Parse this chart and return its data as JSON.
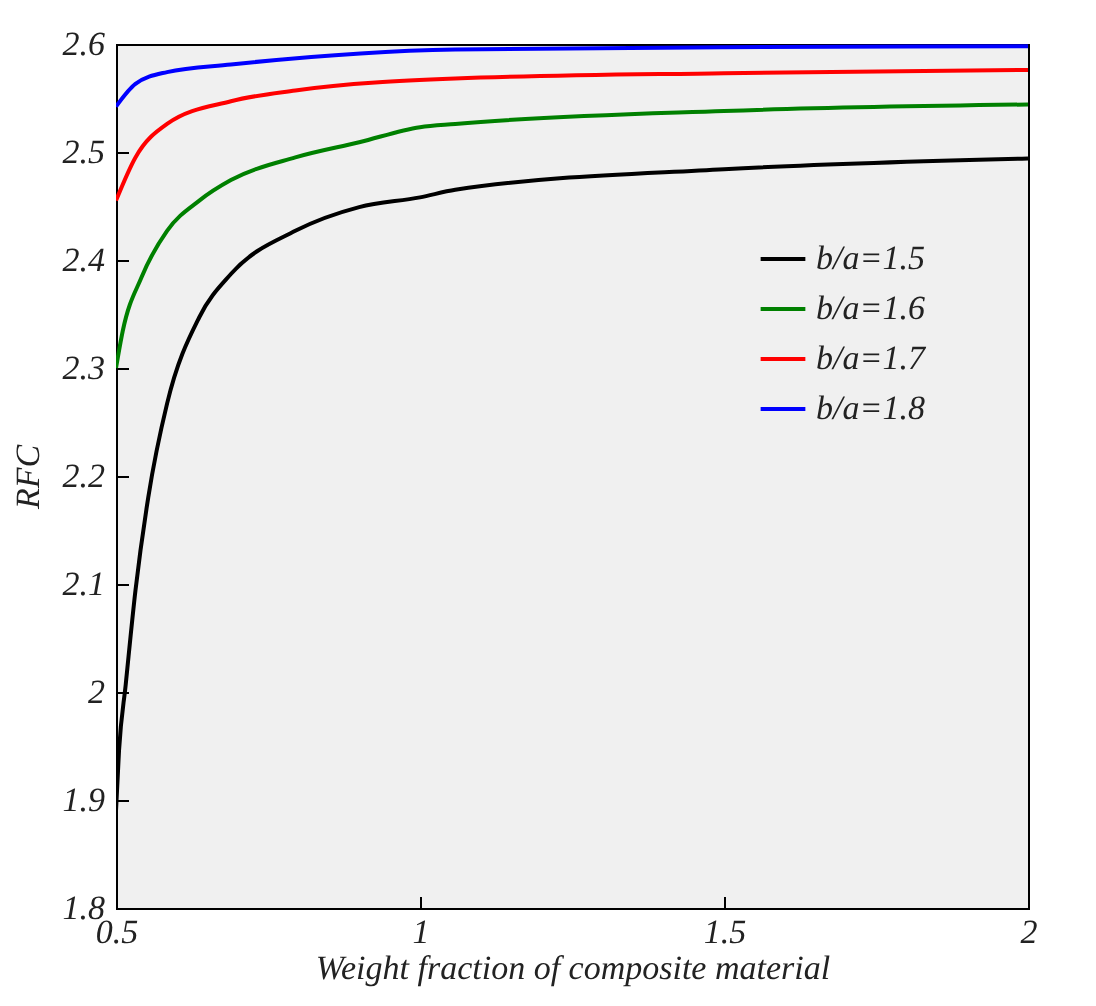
{
  "chart_data": {
    "type": "line",
    "xlabel": "Weight fraction of composite material",
    "ylabel": "RFC",
    "xlim": [
      0.5,
      2
    ],
    "xticks": [
      0.5,
      1,
      1.5,
      2
    ],
    "ylim": [
      1.8,
      2.6
    ],
    "yticks": [
      1.8,
      1.9,
      2,
      2.1,
      2.2,
      2.3,
      2.4,
      2.5,
      2.6
    ],
    "grid": false,
    "legend": "top right",
    "marker": "none",
    "line_style": "solid",
    "series": [
      {
        "name": "b/a=1.5",
        "color": "#000000",
        "x": [
          0.5,
          0.505,
          0.516,
          0.532,
          0.553,
          0.584,
          0.637,
          0.689,
          0.795,
          0.9,
          1.0,
          1.058,
          1.5,
          2
        ],
        "values": [
          1.89,
          1.946,
          2.007,
          2.094,
          2.18,
          2.267,
          2.347,
          2.387,
          2.427,
          2.449,
          2.458,
          2.465,
          2.484,
          2.494
        ]
      },
      {
        "name": "b/a=1.6",
        "color": "#008000",
        "x": [
          0.5,
          0.511,
          0.542,
          0.584,
          0.637,
          0.689,
          0.795,
          0.9,
          1.0,
          1.058,
          1.5,
          2
        ],
        "values": [
          2.3,
          2.334,
          2.384,
          2.427,
          2.455,
          2.474,
          2.495,
          2.509,
          2.523,
          2.526,
          2.538,
          2.544
        ]
      },
      {
        "name": "b/a=1.7",
        "color": "#ff0000",
        "x": [
          0.5,
          0.532,
          0.584,
          0.689,
          0.795,
          1.058,
          1.5,
          2
        ],
        "values": [
          2.455,
          2.495,
          2.526,
          2.547,
          2.557,
          2.568,
          2.573,
          2.576
        ]
      },
      {
        "name": "b/a=1.8",
        "color": "#0000ff",
        "x": [
          0.5,
          0.532,
          0.584,
          0.689,
          1.058,
          1.5,
          2
        ],
        "values": [
          2.542,
          2.563,
          2.574,
          2.581,
          2.595,
          2.597,
          2.598
        ]
      }
    ]
  }
}
